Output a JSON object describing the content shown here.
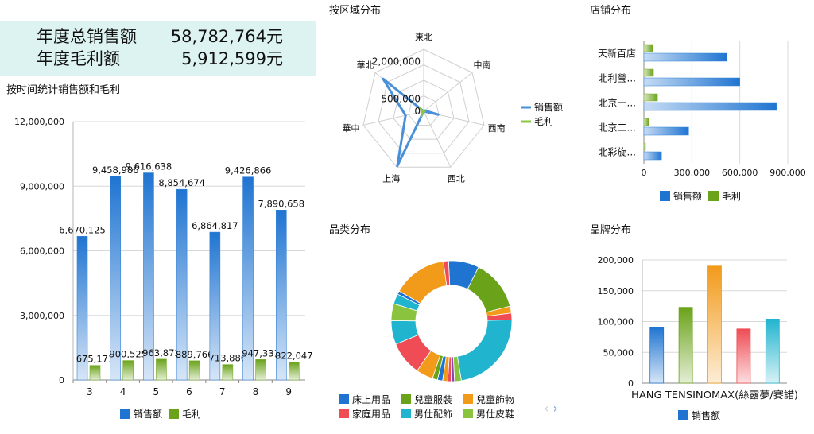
{
  "kpi": {
    "rows": [
      {
        "label": "年度总销售额",
        "value": "58,782,764元"
      },
      {
        "label": "年度毛利额",
        "value": "5,912,599元"
      }
    ]
  },
  "nav": {
    "prev": "‹",
    "next": "›"
  },
  "colors": {
    "sales": "#1f74d1",
    "profit": "#6aa319",
    "kpi_bg": "#dcf3f1"
  },
  "chart_data": [
    {
      "id": "time",
      "type": "bar",
      "title": "按时间统计销售额和毛利",
      "categories": [
        "3",
        "4",
        "5",
        "6",
        "7",
        "8",
        "9"
      ],
      "series": [
        {
          "name": "销售额",
          "color": "#1f74d1",
          "values": [
            6670125,
            9458986,
            9616638,
            8854674,
            6864817,
            9426866,
            7890658
          ],
          "labels": [
            "6,670,125",
            "9,458,986",
            "9,616,638",
            "8,854,674",
            "6,864,817",
            "9,426,866",
            "7,890,658"
          ]
        },
        {
          "name": "毛利",
          "color": "#6aa319",
          "values": [
            675171,
            900525,
            963873,
            889766,
            713886,
            947331,
            822047
          ],
          "labels": [
            "675,171",
            "900,525",
            "963,873",
            "889,766",
            "713,886",
            "947,331",
            "822,047"
          ]
        }
      ],
      "ylim": [
        0,
        12000000
      ],
      "yticks": [
        "0",
        "3,000,000",
        "6,000,000",
        "9,000,000",
        "12,000,000"
      ],
      "grid": true,
      "legend": "bottom"
    },
    {
      "id": "region",
      "type": "radar",
      "title": "按区域分布",
      "axes": [
        "東北",
        "中南",
        "西南",
        "西北",
        "上海",
        "華中",
        "華北"
      ],
      "series": [
        {
          "name": "销售额",
          "color": "#4a90d9",
          "values": [
            0,
            50000,
            600000,
            0,
            2450000,
            750000,
            2100000
          ]
        },
        {
          "name": "毛利",
          "color": "#8dc63f",
          "values": [
            0,
            5000,
            60000,
            0,
            245000,
            75000,
            210000
          ]
        }
      ],
      "rmax": 2500000,
      "rlabels": [
        "0",
        "500,000",
        "2,000,000"
      ],
      "legend": "right"
    },
    {
      "id": "store",
      "type": "hbar",
      "title": "店铺分布",
      "categories": [
        "天新百店",
        "北利瑩...",
        "北京一...",
        "北京二...",
        "北彩旋..."
      ],
      "series": [
        {
          "name": "销售额",
          "color": "#1f74d1",
          "values": [
            520000,
            600000,
            830000,
            280000,
            110000
          ]
        },
        {
          "name": "毛利",
          "color": "#6aa319",
          "values": [
            55000,
            60000,
            85000,
            30000,
            10000
          ]
        }
      ],
      "xlim": [
        0,
        900000
      ],
      "xticks": [
        "0",
        "300,000",
        "600,000",
        "900,000"
      ],
      "legend": "bottom"
    },
    {
      "id": "category",
      "type": "pie",
      "title": "品类分布",
      "donut": true,
      "legend_entries": [
        {
          "name": "床上用品",
          "color": "#1f74d1"
        },
        {
          "name": "兒童服裝",
          "color": "#6aa319"
        },
        {
          "name": "兒童飾物",
          "color": "#f29a1a"
        },
        {
          "name": "家庭用品",
          "color": "#ef4c55"
        },
        {
          "name": "男仕配飾",
          "color": "#21b4cf"
        },
        {
          "name": "男仕皮鞋",
          "color": "#8ac43f"
        }
      ],
      "slices": [
        {
          "color": "#1f74d1",
          "value": 9
        },
        {
          "color": "#6aa319",
          "value": 15
        },
        {
          "color": "#f29a1a",
          "value": 2
        },
        {
          "color": "#ef4c55",
          "value": 2
        },
        {
          "color": "#21b4cf",
          "value": 25
        },
        {
          "color": "#8ac43f",
          "value": 2
        },
        {
          "color": "#8e44ad",
          "value": 1
        },
        {
          "color": "#ef4c55",
          "value": 1
        },
        {
          "color": "#f29a1a",
          "value": 1.5
        },
        {
          "color": "#1f74d1",
          "value": 1.5
        },
        {
          "color": "#6aa319",
          "value": 1.5
        },
        {
          "color": "#f29a1a",
          "value": 5
        },
        {
          "color": "#ef4c55",
          "value": 10
        },
        {
          "color": "#21b4cf",
          "value": 7
        },
        {
          "color": "#8ac43f",
          "value": 5
        },
        {
          "color": "#21b4cf",
          "value": 3
        },
        {
          "color": "#1f74d1",
          "value": 1
        },
        {
          "color": "#f29a1a",
          "value": 16
        },
        {
          "color": "#ef4c55",
          "value": 1.5
        }
      ]
    },
    {
      "id": "brand",
      "type": "bar",
      "title": "品牌分布",
      "categories": [
        "",
        "",
        "",
        "",
        ""
      ],
      "xlabel": "HANG TENSINOMAX(絲露夢/賽諾)",
      "series": [
        {
          "name": "销售额",
          "color": "#1f74d1",
          "values": [
            91000,
            123000,
            190000,
            88000,
            104000
          ],
          "colors": [
            "#1f74d1",
            "#6aa319",
            "#f29a1a",
            "#ef4c55",
            "#21b4cf"
          ]
        }
      ],
      "ylim": [
        0,
        200000
      ],
      "yticks": [
        "0",
        "50,000",
        "100,000",
        "150,000",
        "200,000"
      ],
      "legend": "bottom"
    }
  ]
}
